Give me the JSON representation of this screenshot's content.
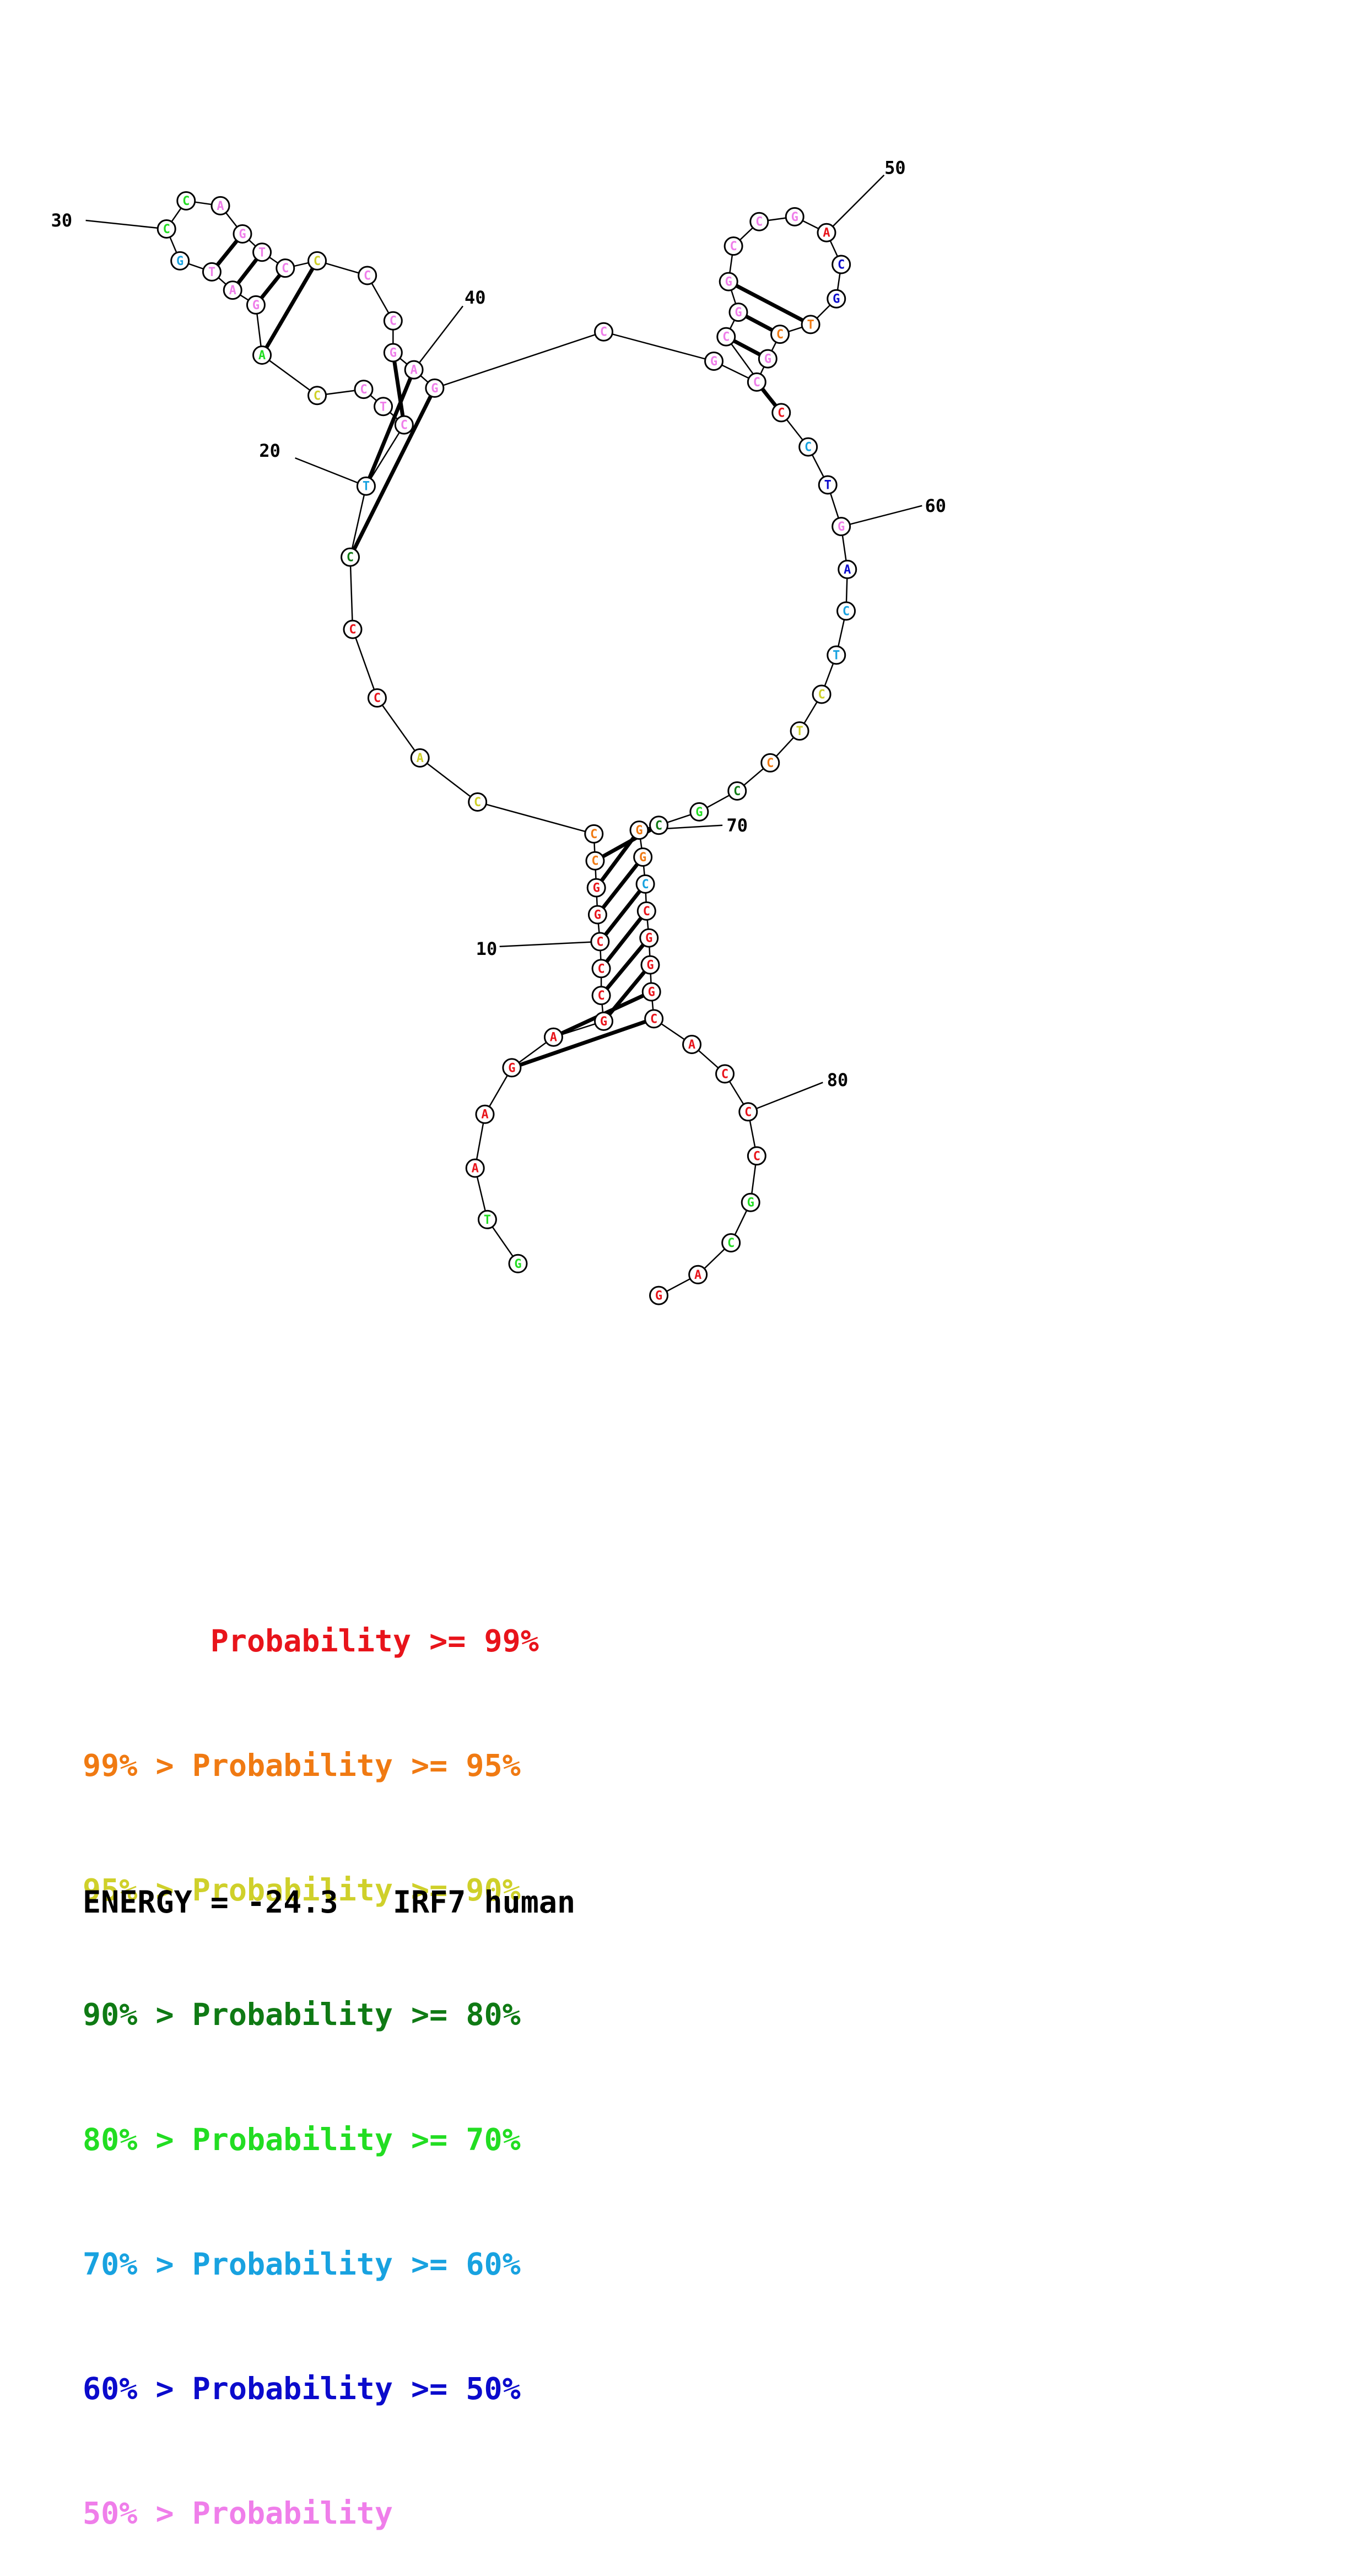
{
  "colors": {
    "p99": "#e8141b",
    "p95": "#f07a12",
    "p90": "#cfd02a",
    "p80": "#0f7a14",
    "p70": "#22dd22",
    "p60": "#18a2e0",
    "p50": "#0b0bcc",
    "plow": "#ef7eea"
  },
  "sequence": [
    {
      "n": 1,
      "base": "G",
      "prob": "p70"
    },
    {
      "n": 2,
      "base": "T",
      "prob": "p70"
    },
    {
      "n": 3,
      "base": "A",
      "prob": "p99"
    },
    {
      "n": 4,
      "base": "A",
      "prob": "p99"
    },
    {
      "n": 5,
      "base": "G",
      "prob": "p99"
    },
    {
      "n": 6,
      "base": "A",
      "prob": "p99"
    },
    {
      "n": 7,
      "base": "G",
      "prob": "p99"
    },
    {
      "n": 8,
      "base": "C",
      "prob": "p99"
    },
    {
      "n": 9,
      "base": "C",
      "prob": "p99"
    },
    {
      "n": 10,
      "base": "C",
      "prob": "p99"
    },
    {
      "n": 11,
      "base": "G",
      "prob": "p99"
    },
    {
      "n": 12,
      "base": "G",
      "prob": "p99"
    },
    {
      "n": 13,
      "base": "C",
      "prob": "p95"
    },
    {
      "n": 14,
      "base": "C",
      "prob": "p95"
    },
    {
      "n": 15,
      "base": "C",
      "prob": "p90"
    },
    {
      "n": 16,
      "base": "A",
      "prob": "p90"
    },
    {
      "n": 17,
      "base": "C",
      "prob": "p99"
    },
    {
      "n": 18,
      "base": "C",
      "prob": "p99"
    },
    {
      "n": 19,
      "base": "C",
      "prob": "p80"
    },
    {
      "n": 20,
      "base": "T",
      "prob": "p60"
    },
    {
      "n": 21,
      "base": "C",
      "prob": "plow"
    },
    {
      "n": 22,
      "base": "T",
      "prob": "plow"
    },
    {
      "n": 23,
      "base": "C",
      "prob": "plow"
    },
    {
      "n": 24,
      "base": "C",
      "prob": "p90"
    },
    {
      "n": 25,
      "base": "A",
      "prob": "p70"
    },
    {
      "n": 26,
      "base": "G",
      "prob": "plow"
    },
    {
      "n": 27,
      "base": "A",
      "prob": "plow"
    },
    {
      "n": 28,
      "base": "T",
      "prob": "plow"
    },
    {
      "n": 29,
      "base": "G",
      "prob": "p60"
    },
    {
      "n": 30,
      "base": "C",
      "prob": "p70"
    },
    {
      "n": 31,
      "base": "C",
      "prob": "p70"
    },
    {
      "n": 32,
      "base": "A",
      "prob": "plow"
    },
    {
      "n": 33,
      "base": "G",
      "prob": "plow"
    },
    {
      "n": 34,
      "base": "T",
      "prob": "plow"
    },
    {
      "n": 35,
      "base": "C",
      "prob": "plow"
    },
    {
      "n": 36,
      "base": "C",
      "prob": "p90"
    },
    {
      "n": 37,
      "base": "C",
      "prob": "plow"
    },
    {
      "n": 38,
      "base": "C",
      "prob": "plow"
    },
    {
      "n": 39,
      "base": "G",
      "prob": "plow"
    },
    {
      "n": 40,
      "base": "A",
      "prob": "plow"
    },
    {
      "n": 41,
      "base": "G",
      "prob": "plow"
    },
    {
      "n": 42,
      "base": "C",
      "prob": "plow"
    },
    {
      "n": 43,
      "base": "G",
      "prob": "plow"
    },
    {
      "n": 44,
      "base": "C",
      "prob": "plow"
    },
    {
      "n": 45,
      "base": "G",
      "prob": "plow"
    },
    {
      "n": 46,
      "base": "C",
      "prob": "p95"
    },
    {
      "n": 47,
      "base": "T",
      "prob": "p95"
    },
    {
      "n": 48,
      "base": "G",
      "prob": "p50"
    },
    {
      "n": 49,
      "base": "C",
      "prob": "p50"
    },
    {
      "n": 50,
      "base": "A",
      "prob": "p99"
    },
    {
      "n": 51,
      "base": "G",
      "prob": "plow"
    },
    {
      "n": 52,
      "base": "C",
      "prob": "plow"
    },
    {
      "n": 53,
      "base": "C",
      "prob": "plow"
    },
    {
      "n": 54,
      "base": "G",
      "prob": "plow"
    },
    {
      "n": 55,
      "base": "G",
      "prob": "plow"
    },
    {
      "n": 56,
      "base": "C",
      "prob": "plow"
    },
    {
      "n": 57,
      "base": "C",
      "prob": "p99"
    },
    {
      "n": 58,
      "base": "C",
      "prob": "p60"
    },
    {
      "n": 59,
      "base": "T",
      "prob": "p50"
    },
    {
      "n": 60,
      "base": "G",
      "prob": "plow"
    },
    {
      "n": 61,
      "base": "A",
      "prob": "p50"
    },
    {
      "n": 62,
      "base": "C",
      "prob": "p60"
    },
    {
      "n": 63,
      "base": "T",
      "prob": "p60"
    },
    {
      "n": 64,
      "base": "C",
      "prob": "p90"
    },
    {
      "n": 65,
      "base": "T",
      "prob": "p90"
    },
    {
      "n": 66,
      "base": "C",
      "prob": "p95"
    },
    {
      "n": 67,
      "base": "C",
      "prob": "p80"
    },
    {
      "n": 68,
      "base": "G",
      "prob": "p70"
    },
    {
      "n": 69,
      "base": "C",
      "prob": "p80"
    },
    {
      "n": 70,
      "base": "G",
      "prob": "p95"
    },
    {
      "n": 71,
      "base": "G",
      "prob": "p95"
    },
    {
      "n": 72,
      "base": "C",
      "prob": "p60"
    },
    {
      "n": 73,
      "base": "C",
      "prob": "p99"
    },
    {
      "n": 74,
      "base": "G",
      "prob": "p99"
    },
    {
      "n": 75,
      "base": "G",
      "prob": "p99"
    },
    {
      "n": 76,
      "base": "G",
      "prob": "p99"
    },
    {
      "n": 77,
      "base": "C",
      "prob": "p99"
    },
    {
      "n": 78,
      "base": "A",
      "prob": "p99"
    },
    {
      "n": 79,
      "base": "C",
      "prob": "p99"
    },
    {
      "n": 80,
      "base": "C",
      "prob": "p99"
    },
    {
      "n": 81,
      "base": "C",
      "prob": "p99"
    },
    {
      "n": 82,
      "base": "G",
      "prob": "p70"
    },
    {
      "n": 83,
      "base": "C",
      "prob": "p70"
    },
    {
      "n": 84,
      "base": "A",
      "prob": "p99"
    },
    {
      "n": 85,
      "base": "G",
      "prob": "p99"
    }
  ],
  "pairs": [
    [
      5,
      77
    ],
    [
      6,
      76
    ],
    [
      7,
      75
    ],
    [
      8,
      74
    ],
    [
      9,
      73
    ],
    [
      10,
      72
    ],
    [
      11,
      71
    ],
    [
      12,
      70
    ],
    [
      13,
      69
    ],
    [
      19,
      41
    ],
    [
      20,
      40
    ],
    [
      21,
      39
    ],
    [
      25,
      36
    ],
    [
      26,
      35
    ],
    [
      27,
      34
    ],
    [
      28,
      33
    ],
    [
      44,
      57
    ],
    [
      45,
      56
    ],
    [
      46,
      55
    ],
    [
      47,
      54
    ]
  ],
  "index_labels": [
    "10",
    "20",
    "30",
    "40",
    "50",
    "60",
    "70",
    "80"
  ],
  "legend": [
    {
      "prefix": "       ",
      "text": "Probability >= 99%",
      "color": "p99"
    },
    {
      "prefix": "99% > ",
      "text": "Probability >= 95%",
      "color": "p95"
    },
    {
      "prefix": "95% > ",
      "text": "Probability >= 90%",
      "color": "p90"
    },
    {
      "prefix": "90% > ",
      "text": "Probability >= 80%",
      "color": "p80"
    },
    {
      "prefix": "80% > ",
      "text": "Probability >= 70%",
      "color": "p70"
    },
    {
      "prefix": "70% > ",
      "text": "Probability >= 60%",
      "color": "p60"
    },
    {
      "prefix": "60% > ",
      "text": "Probability >= 50%",
      "color": "p50"
    },
    {
      "prefix": "50% > ",
      "text": "Probability",
      "color": "plow"
    }
  ],
  "energy": {
    "label": "ENERGY = ",
    "value": "-24.3",
    "gene": "IRF7",
    "species": "human"
  }
}
